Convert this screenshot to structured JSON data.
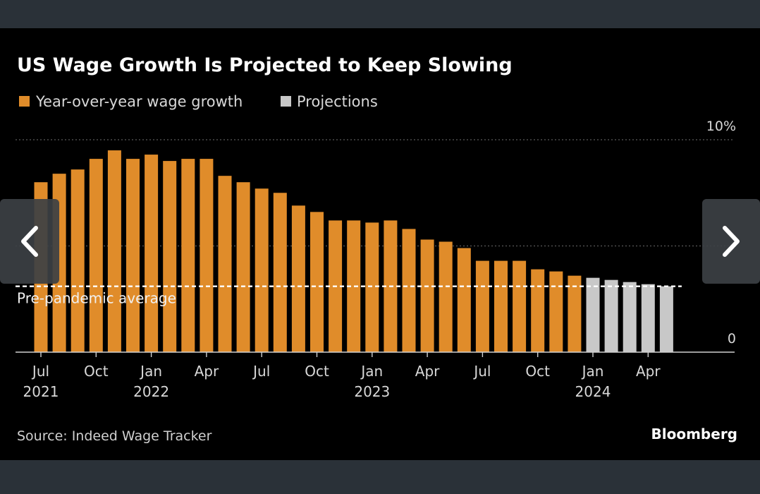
{
  "viewer": {
    "prev_label": "Previous",
    "next_label": "Next"
  },
  "colors": {
    "actual": "#e08c2a",
    "projection": "#c8c8c8",
    "background": "#000000",
    "frame": "#2a3138"
  },
  "chart_data": {
    "type": "bar",
    "title": "US Wage Growth Is Projected to Keep Slowing",
    "legend": [
      {
        "name": "Year-over-year wage growth",
        "color": "#e08c2a"
      },
      {
        "name": "Projections",
        "color": "#c8c8c8"
      }
    ],
    "legend_placement": "top-left",
    "ylim": [
      0,
      10
    ],
    "y_ticks": [
      {
        "value": 10,
        "label": "10%"
      },
      {
        "value": 0,
        "label": "0"
      }
    ],
    "gridlines": [
      5,
      10
    ],
    "x_ticks": [
      {
        "index": 0,
        "label": "Jul",
        "year": "2021"
      },
      {
        "index": 3,
        "label": "Oct",
        "year": ""
      },
      {
        "index": 6,
        "label": "Jan",
        "year": "2022"
      },
      {
        "index": 9,
        "label": "Apr",
        "year": ""
      },
      {
        "index": 12,
        "label": "Jul",
        "year": ""
      },
      {
        "index": 15,
        "label": "Oct",
        "year": ""
      },
      {
        "index": 18,
        "label": "Jan",
        "year": "2023"
      },
      {
        "index": 21,
        "label": "Apr",
        "year": ""
      },
      {
        "index": 24,
        "label": "Jul",
        "year": ""
      },
      {
        "index": 27,
        "label": "Oct",
        "year": ""
      },
      {
        "index": 30,
        "label": "Jan",
        "year": "2024"
      },
      {
        "index": 33,
        "label": "Apr",
        "year": ""
      }
    ],
    "series": [
      {
        "name": "Year-over-year wage growth",
        "values": [
          8.0,
          8.4,
          8.6,
          9.1,
          9.5,
          9.1,
          9.3,
          9.0,
          9.1,
          9.1,
          8.3,
          8.0,
          7.7,
          7.5,
          6.9,
          6.6,
          6.2,
          6.2,
          6.1,
          6.2,
          5.8,
          5.3,
          5.2,
          4.9,
          4.3,
          4.3,
          4.3,
          3.9,
          3.8,
          3.6
        ]
      },
      {
        "name": "Projections",
        "values": [
          3.5,
          3.4,
          3.3,
          3.2,
          3.1
        ]
      }
    ],
    "reference_line": {
      "value": 3.1,
      "label": "Pre-pandemic average"
    },
    "source": "Source: Indeed Wage Tracker",
    "brand": "Bloomberg"
  }
}
